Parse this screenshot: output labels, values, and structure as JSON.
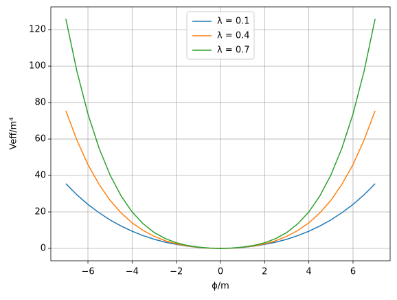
{
  "chart_data": {
    "type": "line",
    "xlabel": "ϕ/m",
    "ylabel": "Veff/m⁴",
    "x": [
      -7,
      -6.5,
      -6,
      -5.5,
      -5,
      -4.5,
      -4,
      -3.5,
      -3,
      -2.5,
      -2,
      -1.5,
      -1,
      -0.5,
      0,
      0.5,
      1,
      1.5,
      2,
      2.5,
      3,
      3.5,
      4,
      4.5,
      5,
      5.5,
      6,
      6.5,
      7
    ],
    "series": [
      {
        "name": "λ = 0.1",
        "color": "#1f77b4",
        "values": [
          35.5,
          29.4,
          24.1,
          19.6,
          15.6,
          12.3,
          9.4,
          7.0,
          5.0,
          3.4,
          2.2,
          1.2,
          0.5,
          0.1,
          0,
          0.1,
          0.5,
          1.2,
          2.2,
          3.4,
          5.0,
          7.0,
          9.4,
          12.3,
          15.6,
          19.6,
          24.1,
          29.4,
          35.5
        ]
      },
      {
        "name": "λ = 0.4",
        "color": "#ff7f0e",
        "values": [
          75.5,
          59.4,
          46.0,
          35.2,
          26.4,
          19.5,
          14.0,
          9.8,
          6.6,
          4.2,
          2.5,
          1.3,
          0.6,
          0.1,
          0,
          0.1,
          0.6,
          1.3,
          2.5,
          4.2,
          6.6,
          9.8,
          14.0,
          19.5,
          26.4,
          35.2,
          46.0,
          59.4,
          75.5
        ]
      },
      {
        "name": "λ = 0.7",
        "color": "#2ca02c",
        "values": [
          125.9,
          97.2,
          73.8,
          55.1,
          40.3,
          28.8,
          20.0,
          13.5,
          8.7,
          5.4,
          3.1,
          1.6,
          0.7,
          0.2,
          0,
          0.2,
          0.7,
          1.6,
          3.1,
          5.4,
          8.7,
          13.5,
          20.0,
          28.8,
          40.3,
          55.1,
          73.8,
          97.2,
          125.9
        ]
      }
    ],
    "xlim": [
      -7.68,
      7.68
    ],
    "ylim": [
      -6.8,
      132.5
    ],
    "xticks": [
      {
        "value": -6,
        "label": "−6"
      },
      {
        "value": -4,
        "label": "−4"
      },
      {
        "value": -2,
        "label": "−2"
      },
      0,
      2,
      4,
      6
    ],
    "yticks": [
      0,
      20,
      40,
      60,
      80,
      100,
      120
    ],
    "grid": true,
    "legend": "upper center"
  }
}
